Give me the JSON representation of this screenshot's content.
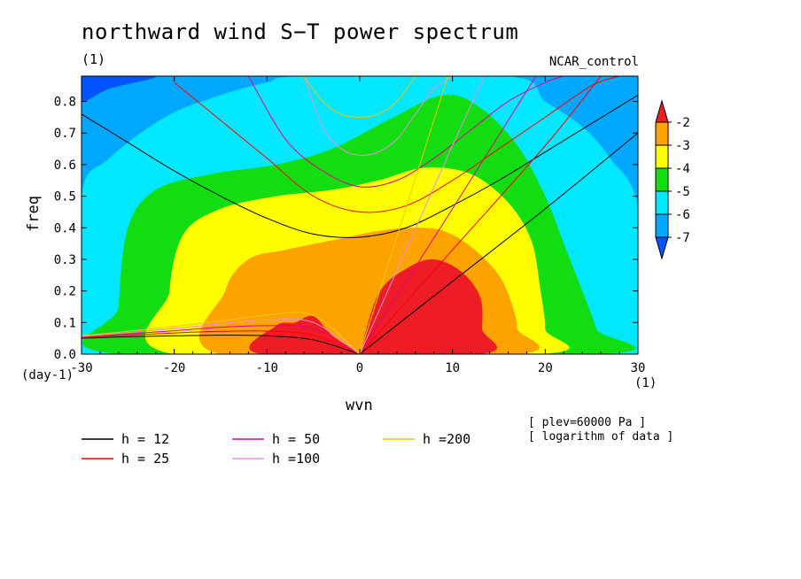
{
  "figure": {
    "title": "northward wind S−T power spectrum",
    "subtitle_left": "(1)",
    "subtitle_right": "NCAR_control",
    "notes": [
      "[ plev=60000 Pa ]",
      "[ logarithm of data ]"
    ]
  },
  "chart_data": {
    "type": "heatmap",
    "xlabel": "wvn",
    "ylabel": "freq",
    "x_unit": "(1)",
    "y_unit": "(day-1)",
    "xlim": [
      -30,
      30
    ],
    "ylim": [
      0,
      0.88
    ],
    "x_ticks": [
      -30,
      -20,
      -10,
      0,
      10,
      20,
      30
    ],
    "y_ticks": [
      0.0,
      0.1,
      0.2,
      0.3,
      0.4,
      0.5,
      0.6,
      0.7,
      0.8
    ],
    "colorbar": {
      "labels": [
        "-2",
        "-3",
        "-4",
        "-5",
        "-6",
        "-7"
      ],
      "levels": [
        -2,
        -3,
        -4,
        -5,
        -6,
        -7
      ],
      "colors": [
        "#ee1c24",
        "#fda300",
        "#ffff00",
        "#11dd11",
        "#00e8ff",
        "#00a7ff",
        "#0055ff"
      ],
      "extend": "both"
    },
    "contour_regions": [
      {
        "range": "> -3",
        "color": "#ee1c24",
        "boundary": [
          [
            0,
            0
          ],
          [
            2,
            0.19
          ],
          [
            5,
            0.27
          ],
          [
            8,
            0.3
          ],
          [
            11,
            0.26
          ],
          [
            13,
            0.18
          ],
          [
            13.2,
            0.08
          ],
          [
            13,
            0
          ],
          [
            -10.5,
            0
          ],
          [
            -9,
            0.09
          ],
          [
            -7,
            0.1
          ],
          [
            -5,
            0.12
          ],
          [
            -3,
            0.06
          ],
          [
            0,
            0
          ]
        ]
      },
      {
        "range": "-4 to -3",
        "color": "#fda300",
        "boundary": [
          [
            -15,
            0
          ],
          [
            -14.5,
            0.2
          ],
          [
            -12,
            0.3
          ],
          [
            -8,
            0.33
          ],
          [
            -3,
            0.36
          ],
          [
            2,
            0.39
          ],
          [
            6,
            0.4
          ],
          [
            9,
            0.39
          ],
          [
            12,
            0.34
          ],
          [
            15,
            0.25
          ],
          [
            16.5,
            0.15
          ],
          [
            17,
            0.08
          ],
          [
            17,
            0
          ]
        ]
      },
      {
        "range": "-5 to -4",
        "color": "#ffff00",
        "boundary": [
          [
            -20,
            0
          ],
          [
            -20.5,
            0.2
          ],
          [
            -19,
            0.38
          ],
          [
            -15,
            0.46
          ],
          [
            -9,
            0.5
          ],
          [
            -3,
            0.52
          ],
          [
            2,
            0.55
          ],
          [
            7,
            0.59
          ],
          [
            12,
            0.57
          ],
          [
            16,
            0.48
          ],
          [
            18.5,
            0.36
          ],
          [
            19.5,
            0.2
          ],
          [
            20,
            0.08
          ],
          [
            19.5,
            0
          ]
        ]
      },
      {
        "range": "-6 to -5",
        "color": "#11dd11",
        "boundary": [
          [
            -26,
            0
          ],
          [
            -26,
            0.15
          ],
          [
            -25,
            0.4
          ],
          [
            -22,
            0.52
          ],
          [
            -16,
            0.57
          ],
          [
            -9,
            0.6
          ],
          [
            -3,
            0.65
          ],
          [
            3,
            0.74
          ],
          [
            9,
            0.82
          ],
          [
            13,
            0.78
          ],
          [
            17,
            0.66
          ],
          [
            20,
            0.5
          ],
          [
            22,
            0.35
          ],
          [
            24,
            0.2
          ],
          [
            25.5,
            0.08
          ],
          [
            26,
            0
          ]
        ]
      },
      {
        "range": "-7 to -6",
        "color": "#00e8ff",
        "boundary": [
          [
            -30,
            0.5
          ],
          [
            -27,
            0.62
          ],
          [
            -21,
            0.75
          ],
          [
            -15,
            0.82
          ],
          [
            -10,
            0.86
          ],
          [
            -6,
            0.88
          ],
          [
            16,
            0.88
          ],
          [
            20,
            0.8
          ],
          [
            24,
            0.72
          ],
          [
            27,
            0.62
          ],
          [
            30,
            0.46
          ],
          [
            30,
            0
          ],
          [
            -30,
            0
          ]
        ]
      },
      {
        "range": "< -7",
        "color": "#0055ff",
        "boundary": [
          [
            -30,
            0.88
          ],
          [
            -30,
            0.8
          ],
          [
            -27,
            0.84
          ],
          [
            -22,
            0.88
          ]
        ]
      }
    ],
    "dispersion_curves": [
      {
        "name": "h = 12",
        "color": "#000000",
        "x": [
          -30,
          -25,
          -20,
          -15,
          -10,
          -5,
          0
        ],
        "y": [
          0.05,
          0.055,
          0.058,
          0.06,
          0.058,
          0.045,
          0
        ]
      },
      {
        "name": "h = 25",
        "color": "#ff0000",
        "x": [
          -30,
          -25,
          -20,
          -15,
          -10,
          -5,
          0
        ],
        "y": [
          0.052,
          0.06,
          0.067,
          0.072,
          0.073,
          0.06,
          0
        ]
      },
      {
        "name": "h = 50",
        "color": "#e6008c",
        "x": [
          -30,
          -25,
          -20,
          -15,
          -10,
          -5,
          0
        ],
        "y": [
          0.054,
          0.064,
          0.074,
          0.085,
          0.09,
          0.08,
          0
        ]
      },
      {
        "name": "h =100",
        "color": "#e88fe0",
        "x": [
          -30,
          -25,
          -20,
          -15,
          -10,
          -5,
          0
        ],
        "y": [
          0.056,
          0.068,
          0.081,
          0.096,
          0.108,
          0.1,
          0
        ]
      },
      {
        "name": "h =200",
        "color": "#f0c800",
        "x": [
          -30,
          -25,
          -20,
          -15,
          -10,
          -5,
          0
        ],
        "y": [
          0.058,
          0.072,
          0.088,
          0.105,
          0.123,
          0.123,
          0
        ]
      },
      {
        "name": "h = 12",
        "color": "#000000",
        "x": [
          -30,
          -25,
          -20,
          -15,
          -10,
          -5,
          0,
          5,
          10,
          15,
          20,
          25,
          30
        ],
        "y": [
          0.76,
          0.67,
          0.58,
          0.5,
          0.43,
          0.38,
          0.37,
          0.4,
          0.47,
          0.55,
          0.64,
          0.73,
          0.82
        ]
      },
      {
        "name": "h = 25",
        "color": "#ff0000",
        "x": [
          -20,
          -15,
          -10,
          -5,
          0,
          5,
          10,
          15,
          20,
          25,
          28
        ],
        "y": [
          0.86,
          0.74,
          0.62,
          0.5,
          0.45,
          0.47,
          0.55,
          0.65,
          0.75,
          0.85,
          0.88
        ]
      },
      {
        "name": "h = 50",
        "color": "#e6008c",
        "x": [
          -12,
          -8,
          -4,
          0,
          4,
          8,
          12,
          16,
          20,
          22
        ],
        "y": [
          0.88,
          0.68,
          0.58,
          0.53,
          0.55,
          0.62,
          0.71,
          0.8,
          0.86,
          0.88
        ]
      },
      {
        "name": "h =100",
        "color": "#e88fe0",
        "x": [
          -6,
          -4,
          -2,
          0,
          2,
          4,
          6,
          8,
          10
        ],
        "y": [
          0.88,
          0.72,
          0.65,
          0.63,
          0.64,
          0.68,
          0.76,
          0.84,
          0.88
        ]
      },
      {
        "name": "h =200",
        "color": "#f0c800",
        "x": [
          -6,
          -4,
          -2,
          0,
          2,
          4,
          6
        ],
        "y": [
          0.88,
          0.8,
          0.76,
          0.75,
          0.76,
          0.8,
          0.88
        ]
      },
      {
        "name": "h = 12",
        "color": "#000000",
        "x": [
          0,
          10,
          20,
          30
        ],
        "y": [
          0,
          0.23,
          0.46,
          0.7
        ]
      },
      {
        "name": "h = 25",
        "color": "#ff0000",
        "x": [
          0,
          10,
          20,
          26
        ],
        "y": [
          0,
          0.33,
          0.66,
          0.88
        ]
      },
      {
        "name": "h = 50",
        "color": "#e6008c",
        "x": [
          0,
          10,
          19
        ],
        "y": [
          0,
          0.46,
          0.88
        ]
      },
      {
        "name": "h =100",
        "color": "#e88fe0",
        "x": [
          0,
          10,
          13.5
        ],
        "y": [
          0,
          0.66,
          0.88
        ]
      },
      {
        "name": "h =200",
        "color": "#f0c800",
        "x": [
          0,
          9.5
        ],
        "y": [
          0,
          0.88
        ]
      }
    ],
    "legend": [
      {
        "label": "h = 12",
        "color": "#000000"
      },
      {
        "label": "h = 25",
        "color": "#ff0000"
      },
      {
        "label": "h = 50",
        "color": "#e6008c"
      },
      {
        "label": "h =100",
        "color": "#e88fe0"
      },
      {
        "label": "h =200",
        "color": "#f0c800"
      }
    ]
  }
}
